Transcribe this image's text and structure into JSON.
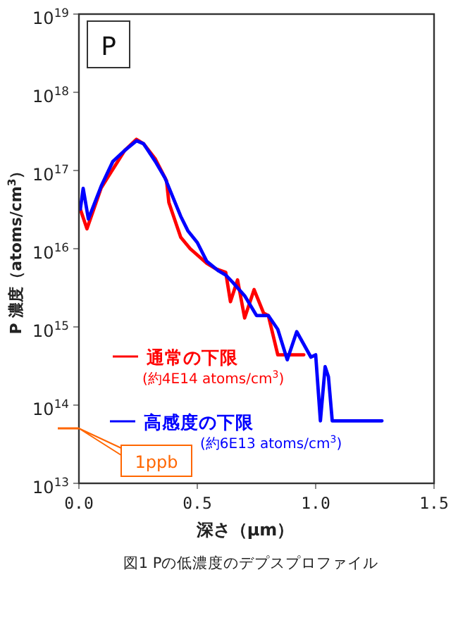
{
  "chart_data": {
    "type": "line",
    "xlabel": "深さ（μm）",
    "ylabel": "P 濃度（atoms/cm$^{3}$）",
    "log": "y",
    "xlim": [
      0,
      1.5
    ],
    "ylim": [
      10000000000000.0,
      1e+19
    ],
    "xticks": [
      {
        "value": 0,
        "label": "0.0"
      },
      {
        "value": 0.5,
        "label": "0.5"
      },
      {
        "value": 1,
        "label": "1.0"
      },
      {
        "value": 1.5,
        "label": "1.5"
      }
    ],
    "yticks": [
      {
        "value": 10000000000000.0,
        "label": "10$^{13}$"
      },
      {
        "value": 100000000000000.0,
        "label": "10$^{14}$"
      },
      {
        "value": 1000000000000000.0,
        "label": "10$^{15}$"
      },
      {
        "value": 1e+16,
        "label": "10$^{16}$"
      },
      {
        "value": 1e+17,
        "label": "10$^{17}$"
      },
      {
        "value": 1e+18,
        "label": "10$^{18}$"
      },
      {
        "value": 1e+19,
        "label": "10$^{19}$"
      }
    ],
    "legend": "bottom left",
    "grid": false,
    "marker": "none",
    "line_style": "solid",
    "series": [
      {
        "name": "通常の下限",
        "color": "#ff0000",
        "x": [
          0.006,
          0.034,
          0.094,
          0.193,
          0.243,
          0.273,
          0.323,
          0.37,
          0.38,
          0.43,
          0.47,
          0.54,
          0.58,
          0.62,
          0.64,
          0.67,
          0.7,
          0.74,
          0.78,
          0.8,
          0.84,
          0.95
        ],
        "values": [
          3.2e+16,
          1.8e+16,
          6e+16,
          1.8e+17,
          2.5e+17,
          2.2e+17,
          1.4e+17,
          7.4e+16,
          3.9e+16,
          1.4e+16,
          1e+16,
          6500000000000000.0,
          5500000000000000.0,
          5000000000000000.0,
          2100000000000000.0,
          4000000000000000.0,
          1300000000000000.0,
          3000000000000000.0,
          1500000000000000.0,
          1400000000000000.0,
          440000000000000.0,
          440000000000000.0
        ]
      },
      {
        "name": "高感度の下限",
        "color": "#0000ff",
        "x": [
          0.006,
          0.018,
          0.04,
          0.094,
          0.143,
          0.193,
          0.243,
          0.273,
          0.323,
          0.363,
          0.43,
          0.46,
          0.5,
          0.54,
          0.59,
          0.62,
          0.65,
          0.7,
          0.75,
          0.8,
          0.84,
          0.88,
          0.92,
          0.98,
          1.0,
          1.02,
          1.04,
          1.054,
          1.07,
          1.28
        ],
        "values": [
          3.2e+16,
          5.9e+16,
          2.4e+16,
          6.3e+16,
          1.3e+17,
          1.8e+17,
          2.4e+17,
          2.2e+17,
          1.3e+17,
          8.1e+16,
          2.6e+16,
          1.7e+16,
          1.2e+16,
          6900000000000000.0,
          5200000000000000.0,
          4600000000000000.0,
          3700000000000000.0,
          2500000000000000.0,
          1400000000000000.0,
          1400000000000000.0,
          930000000000000.0,
          380000000000000.0,
          870000000000000.0,
          410000000000000.0,
          440000000000000.0,
          63000000000000.0,
          310000000000000.0,
          230000000000000.0,
          63000000000000.0,
          63000000000000.0
        ]
      }
    ],
    "annotations": [
      "P",
      "(約4E14 atoms/cm$^{3}$)",
      "(約6E13 atoms/cm$^{3}$)",
      "1ppb",
      "図1 Pの低濃度のデプスプロファイル"
    ]
  }
}
